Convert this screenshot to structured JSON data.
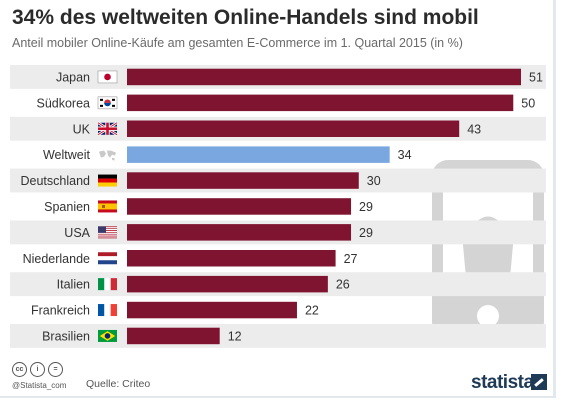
{
  "header": {
    "title": "34% des weltweiten Online-Handels sind mobil",
    "subtitle": "Anteil mobiler Online-Käufe am gesamten E-Commerce im 1. Quartal 2015 (in %)"
  },
  "footer": {
    "handle": "@Statista_com",
    "source": "Quelle: Criteo",
    "brand": "statista",
    "cc_icons": [
      "cc",
      "i",
      "="
    ]
  },
  "colors": {
    "bar": "#7f1431",
    "highlight": "#7ba7e0",
    "stripe": "#ececec",
    "phone": "#cfcfcf"
  },
  "chart_data": {
    "type": "bar",
    "orientation": "horizontal",
    "categories": [
      "Japan",
      "Südkorea",
      "UK",
      "Weltweit",
      "Deutschland",
      "Spanien",
      "USA",
      "Niederlande",
      "Italien",
      "Frankreich",
      "Brasilien"
    ],
    "values": [
      51,
      50,
      43,
      34,
      30,
      29,
      29,
      27,
      26,
      22,
      12
    ],
    "highlight_category": "Weltweit",
    "flag_icons": [
      "japan-flag-icon",
      "south-korea-flag-icon",
      "uk-flag-icon",
      "world-map-icon",
      "germany-flag-icon",
      "spain-flag-icon",
      "usa-flag-icon",
      "netherlands-flag-icon",
      "italy-flag-icon",
      "france-flag-icon",
      "brazil-flag-icon"
    ],
    "xlim": [
      0,
      51
    ],
    "data_labels": true,
    "grid": false,
    "legend": "none"
  }
}
